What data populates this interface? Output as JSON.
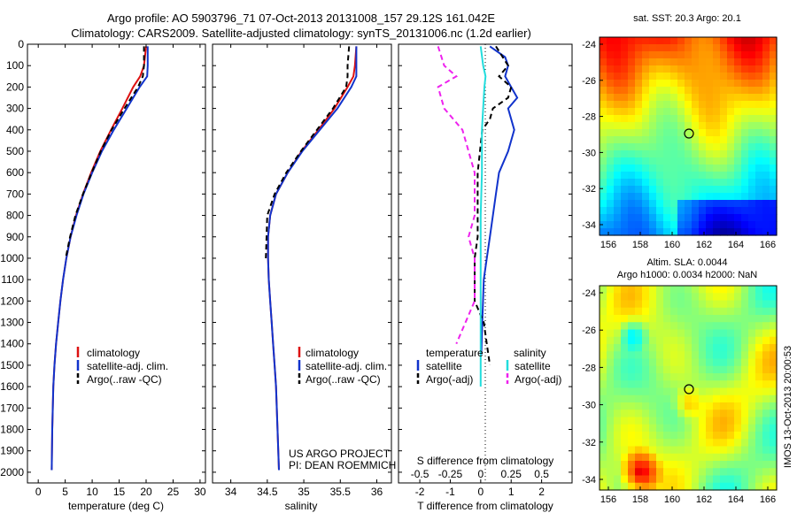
{
  "header": {
    "line1": "Argo profile: AO 5903796_71 07-Oct-2013 20131008_157 29.12S 161.042E",
    "line2": "Climatology: CARS2009. Satellite-adjusted climatology: synTS_20131006.nc (1.2d earlier)"
  },
  "colors": {
    "climatology": "#dd1111",
    "satellite": "#1133cc",
    "argo": "#000000",
    "sal_satellite": "#22dddd",
    "sal_argo": "#ee22ee"
  },
  "chart_data": [
    {
      "type": "line",
      "id": "temperature",
      "xlabel": "temperature (deg C)",
      "ylabel": "",
      "xlim": [
        -2,
        31
      ],
      "ylim": [
        2050,
        0
      ],
      "xticks": [
        0,
        5,
        10,
        15,
        20,
        25,
        30
      ],
      "yticks": [
        0,
        100,
        200,
        300,
        400,
        500,
        600,
        700,
        800,
        900,
        1000,
        1100,
        1200,
        1300,
        1400,
        1500,
        1600,
        1700,
        1800,
        1900,
        2000
      ],
      "legend": [
        "climatology",
        "satellite-adj. clim.",
        "Argo(..raw -QC)"
      ],
      "series": [
        {
          "name": "climatology",
          "color": "#dd1111",
          "dash": "",
          "x": [
            20.0,
            19.6,
            18.9,
            17.6,
            15.6,
            13.5,
            11.5,
            9.8,
            8.3,
            7.0,
            6.0,
            5.2,
            4.6,
            4.1,
            3.7,
            3.3,
            3.0,
            2.8,
            2.6,
            2.5
          ],
          "y": [
            10,
            100,
            150,
            200,
            300,
            400,
            500,
            600,
            700,
            800,
            900,
            1000,
            1100,
            1200,
            1300,
            1400,
            1500,
            1600,
            1800,
            1990
          ]
        },
        {
          "name": "satellite-adj. clim.",
          "color": "#1133cc",
          "dash": "",
          "x": [
            20.3,
            20.3,
            20.2,
            18.8,
            16.4,
            14.0,
            11.8,
            10.0,
            8.4,
            7.1,
            6.0,
            5.2,
            4.6,
            4.1,
            3.7,
            3.3,
            3.0,
            2.8,
            2.6,
            2.5
          ],
          "y": [
            10,
            100,
            150,
            200,
            300,
            400,
            500,
            600,
            700,
            800,
            900,
            1000,
            1100,
            1200,
            1300,
            1400,
            1500,
            1600,
            1800,
            1990
          ]
        },
        {
          "name": "Argo(..raw -QC)",
          "color": "#000000",
          "dash": "6,4",
          "x": [
            19.6,
            19.6,
            19.4,
            18.5,
            16.0,
            13.6,
            11.6,
            9.9,
            8.3,
            6.9,
            5.9,
            5.1
          ],
          "y": [
            10,
            100,
            150,
            200,
            300,
            400,
            500,
            600,
            700,
            800,
            900,
            1000
          ]
        }
      ]
    },
    {
      "type": "line",
      "id": "salinity",
      "xlabel": "salinity",
      "ylabel": "",
      "xlim": [
        33.75,
        36.2
      ],
      "ylim": [
        2050,
        0
      ],
      "xticks": [
        34,
        34.5,
        35,
        35.5,
        36
      ],
      "legend": [
        "climatology",
        "satellite-adj. clim.",
        "Argo(..raw -QC)"
      ],
      "series": [
        {
          "name": "climatology",
          "color": "#dd1111",
          "dash": "",
          "x": [
            35.72,
            35.7,
            35.68,
            35.6,
            35.42,
            35.2,
            34.97,
            34.78,
            34.62,
            34.54,
            34.51,
            34.51,
            34.52,
            34.54,
            34.56,
            34.58,
            34.6,
            34.62,
            34.64,
            34.66
          ],
          "y": [
            10,
            100,
            150,
            200,
            300,
            400,
            500,
            600,
            700,
            800,
            900,
            1000,
            1100,
            1200,
            1300,
            1400,
            1500,
            1600,
            1800,
            1990
          ]
        },
        {
          "name": "satellite-adj. clim.",
          "color": "#1133cc",
          "dash": "",
          "x": [
            35.72,
            35.72,
            35.72,
            35.65,
            35.46,
            35.22,
            34.98,
            34.78,
            34.62,
            34.54,
            34.51,
            34.51,
            34.52,
            34.54,
            34.56,
            34.58,
            34.6,
            34.62,
            34.64,
            34.66
          ],
          "y": [
            10,
            100,
            150,
            200,
            300,
            400,
            500,
            600,
            700,
            800,
            900,
            1000,
            1100,
            1200,
            1300,
            1400,
            1500,
            1600,
            1800,
            1990
          ]
        },
        {
          "name": "Argo(..raw -QC)",
          "color": "#000000",
          "dash": "6,4",
          "x": [
            35.62,
            35.6,
            35.6,
            35.58,
            35.4,
            35.18,
            34.96,
            34.76,
            34.6,
            34.5,
            34.49,
            34.48
          ],
          "y": [
            10,
            100,
            150,
            200,
            300,
            400,
            500,
            600,
            700,
            800,
            900,
            1000
          ]
        }
      ]
    },
    {
      "type": "line",
      "id": "differences",
      "xlabel": "T difference from climatology",
      "xlabel2": "S difference from climatology",
      "xlim": [
        -2.7,
        3.0
      ],
      "ylim": [
        2050,
        0
      ],
      "xticks": [
        -2,
        -1,
        0,
        1,
        2
      ],
      "xticks_s": [
        "-0.5",
        "-0.25",
        "0",
        "0.25",
        "0.5"
      ],
      "legend_headers": [
        "temperature",
        "salinity"
      ],
      "legend": [
        "satellite",
        "Argo(-adj)",
        "satellite",
        "Argo(-adj)"
      ],
      "series": [
        {
          "name": "satellite",
          "color": "#1133cc",
          "dash": "",
          "x": [
            0.3,
            0.8,
            0.9,
            0.8,
            1.0,
            1.2,
            0.9,
            1.1,
            0.9,
            0.6,
            0.5,
            0.4,
            0.3,
            0.2,
            0.1,
            0.05,
            0.02
          ],
          "y": [
            10,
            60,
            100,
            150,
            200,
            250,
            300,
            400,
            500,
            600,
            700,
            800,
            900,
            1000,
            1100,
            1300,
            1450
          ]
        },
        {
          "name": "Argo(-adj)",
          "color": "#000000",
          "dash": "6,4",
          "x": [
            0.5,
            0.9,
            0.6,
            1.0,
            0.9,
            0.4,
            0.3,
            0.05,
            -0.1,
            -0.1,
            -0.1,
            -0.2,
            -0.2,
            0.1,
            0.2,
            0.3
          ],
          "y": [
            10,
            100,
            150,
            200,
            250,
            300,
            350,
            400,
            600,
            800,
            900,
            1000,
            1200,
            1300,
            1400,
            1500
          ]
        },
        {
          "name": "satellite",
          "color": "#22dddd",
          "dash": "",
          "x": [
            0.0,
            0.02,
            0.04,
            0.03,
            0.02,
            0.01,
            0.01,
            0.0,
            0.0,
            0.0,
            0.0,
            0.0
          ],
          "y": [
            10,
            100,
            150,
            200,
            300,
            400,
            600,
            800,
            1000,
            1200,
            1400,
            1600
          ]
        },
        {
          "name": "Argo(-adj)",
          "color": "#ee22ee",
          "dash": "6,4",
          "x": [
            -0.35,
            -0.3,
            -0.2,
            -0.35,
            -0.3,
            -0.15,
            -0.05,
            -0.05,
            -0.1,
            -0.05,
            -0.05,
            -0.2
          ],
          "y": [
            10,
            100,
            150,
            200,
            300,
            400,
            600,
            800,
            900,
            1000,
            1200,
            1400
          ]
        }
      ]
    }
  ],
  "maps": [
    {
      "id": "sst-map",
      "title": "sat. SST: 20.3  Argo: 20.1",
      "yticks": [
        "-24",
        "-26",
        "-28",
        "-30",
        "-32",
        "-34"
      ],
      "xticks": [
        "156",
        "158",
        "160",
        "162",
        "164",
        "166"
      ]
    },
    {
      "id": "sla-map",
      "title": "Altim. SLA: 0.0044",
      "title2": "Argo h1000: 0.0034 h2000: NaN",
      "yticks": [
        "-24",
        "-26",
        "-28",
        "-30",
        "-32",
        "-34"
      ],
      "xticks": [
        "156",
        "158",
        "160",
        "162",
        "164",
        "166"
      ]
    }
  ],
  "credit": {
    "line1": "US ARGO PROJECT",
    "line2": "PI: DEAN ROEMMICH"
  },
  "side_label": "IMOS 13-Oct-2013 20:00:53"
}
